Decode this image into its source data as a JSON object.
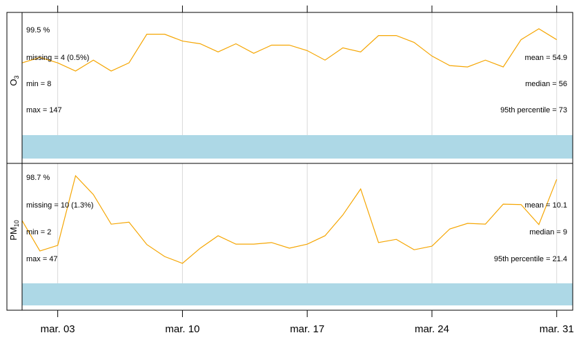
{
  "chart_data": [
    {
      "type": "line",
      "strip": {
        "name": "O",
        "subscript": "3"
      },
      "x": [
        1,
        2,
        3,
        4,
        5,
        6,
        7,
        8,
        9,
        10,
        11,
        12,
        13,
        14,
        15,
        16,
        17,
        18,
        19,
        20,
        21,
        22,
        23,
        24,
        25,
        26,
        27,
        28,
        29,
        30,
        31
      ],
      "series": [
        {
          "color": "#f5a500",
          "values": [
            53,
            57,
            53,
            47,
            55,
            47,
            53,
            74,
            74,
            69,
            67,
            61,
            67,
            60,
            66,
            66,
            62,
            55,
            64,
            61,
            73,
            73,
            68,
            58,
            51,
            50,
            55,
            50,
            70,
            78,
            70
          ]
        }
      ],
      "xlim": [
        1,
        31.9
      ],
      "xticks": [
        {
          "value": 3,
          "label": "mar. 03"
        },
        {
          "value": 10,
          "label": "mar. 10"
        },
        {
          "value": 17,
          "label": "mar. 17"
        },
        {
          "value": 24,
          "label": "mar. 24"
        },
        {
          "value": 31,
          "label": "mar. 31"
        }
      ],
      "ylim": [
        0,
        90
      ],
      "grid": true,
      "bar_color": "#add8e6",
      "capture_color": "#228b22",
      "capture": "99.5 %",
      "missing": "missing = 4 (0.5%)",
      "min": "min = 8",
      "max": "max = 147",
      "mean": "mean = 54.9",
      "median": "median = 56",
      "percentile": "95th percentile = 73"
    },
    {
      "type": "line",
      "strip": {
        "name": "PM",
        "subscript": "10"
      },
      "x": [
        1,
        2,
        3,
        4,
        5,
        6,
        7,
        8,
        9,
        10,
        11,
        12,
        13,
        14,
        15,
        16,
        17,
        18,
        19,
        20,
        21,
        22,
        23,
        24,
        25,
        26,
        27,
        28,
        29,
        30,
        31
      ],
      "series": [
        {
          "color": "#f5a500",
          "values": [
            15.7,
            8.1,
            9.5,
            26.9,
            22.2,
            14.8,
            15.3,
            9.7,
            6.7,
            5.0,
            8.8,
            11.9,
            9.8,
            9.8,
            10.2,
            8.8,
            9.8,
            11.9,
            17.1,
            23.6,
            10.2,
            11.0,
            8.4,
            9.3,
            13.6,
            15.0,
            14.8,
            19.8,
            19.7,
            14.7,
            26.0
          ]
        }
      ],
      "xlim": [
        1,
        31.9
      ],
      "xticks": [
        {
          "value": 3,
          "label": "mar. 03"
        },
        {
          "value": 10,
          "label": "mar. 10"
        },
        {
          "value": 17,
          "label": "mar. 17"
        },
        {
          "value": 24,
          "label": "mar. 24"
        },
        {
          "value": 31,
          "label": "mar. 31"
        }
      ],
      "ylim": [
        0,
        30
      ],
      "grid": true,
      "bar_color": "#add8e6",
      "capture_color": "#228b22",
      "capture": "98.7 %",
      "missing": "missing = 10 (1.3%)",
      "min": "min = 2",
      "max": "max = 47",
      "mean": "mean = 10.1",
      "median": "median = 9",
      "percentile": "95th percentile = 21.4"
    }
  ]
}
